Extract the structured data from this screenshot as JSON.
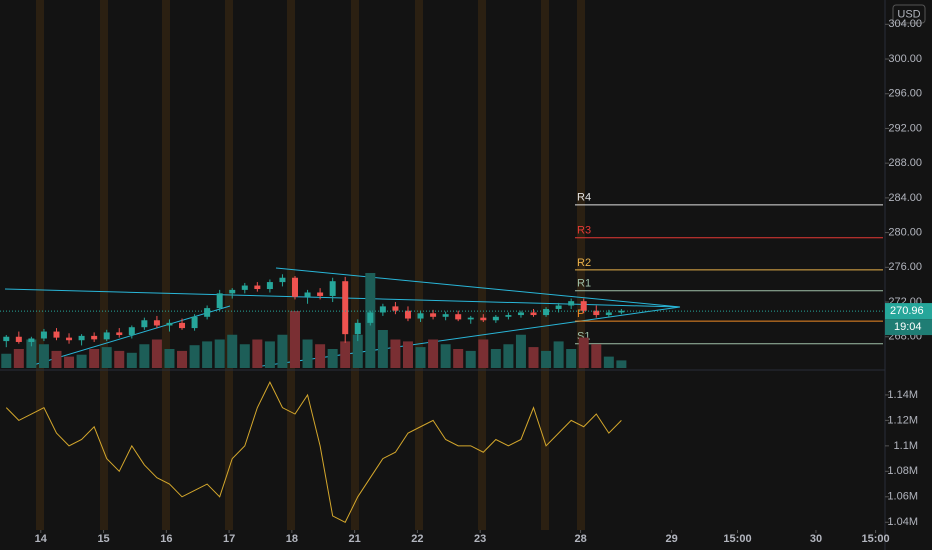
{
  "chart_data": {
    "type": "candlestick",
    "currency": "USD",
    "x": [
      0,
      2,
      4,
      6,
      8,
      10,
      12,
      14,
      16,
      18,
      20,
      22,
      24,
      26,
      28,
      30,
      32,
      34,
      36,
      38,
      40,
      42,
      44,
      46,
      48,
      50,
      52,
      54,
      56,
      58,
      60,
      62,
      64,
      66,
      68,
      70,
      72,
      74,
      76,
      78,
      80,
      82,
      84,
      86,
      88,
      90,
      92,
      94,
      96,
      98
    ],
    "open": [
      267.5,
      268.0,
      267.4,
      267.8,
      268.6,
      267.9,
      267.6,
      268.1,
      267.7,
      268.5,
      268.2,
      269.1,
      269.9,
      269.3,
      269.6,
      269.0,
      270.3,
      271.3,
      273.0,
      273.4,
      273.9,
      273.5,
      274.3,
      274.8,
      272.6,
      273.1,
      272.7,
      274.4,
      268.3,
      269.6,
      270.8,
      271.5,
      271.0,
      270.1,
      270.7,
      270.3,
      270.6,
      270.0,
      270.2,
      269.9,
      270.3,
      270.5,
      270.8,
      270.5,
      271.2,
      271.6,
      272.1,
      271.0,
      270.5,
      270.8
    ],
    "high": [
      268.2,
      268.6,
      268.0,
      268.9,
      269.0,
      268.4,
      268.3,
      268.5,
      268.8,
      269.0,
      269.3,
      270.2,
      270.4,
      270.0,
      270.1,
      270.6,
      271.6,
      273.4,
      273.6,
      274.2,
      274.3,
      274.6,
      275.2,
      275.0,
      273.4,
      273.6,
      274.8,
      274.9,
      270.0,
      271.0,
      271.8,
      272.0,
      271.5,
      271.0,
      271.1,
      270.9,
      271.0,
      270.4,
      270.6,
      270.5,
      270.8,
      271.0,
      271.2,
      271.4,
      271.9,
      272.4,
      272.4,
      271.6,
      271.1,
      271.2
    ],
    "low": [
      266.8,
      267.2,
      266.9,
      267.5,
      267.6,
      267.2,
      267.0,
      267.4,
      267.5,
      267.9,
      267.8,
      268.8,
      269.0,
      268.6,
      268.8,
      268.7,
      270.0,
      271.0,
      272.4,
      273.0,
      273.2,
      273.1,
      273.8,
      272.3,
      271.8,
      272.3,
      272.0,
      267.3,
      267.5,
      269.3,
      270.4,
      270.6,
      269.8,
      269.7,
      270.0,
      269.9,
      269.8,
      269.5,
      269.7,
      269.6,
      270.0,
      270.2,
      270.3,
      270.3,
      270.8,
      271.2,
      270.7,
      270.2,
      270.2,
      270.6
    ],
    "close": [
      268.0,
      267.4,
      267.8,
      268.6,
      267.9,
      267.6,
      268.1,
      267.7,
      268.5,
      268.2,
      269.1,
      269.9,
      269.3,
      269.6,
      269.0,
      270.3,
      271.3,
      273.0,
      273.4,
      273.9,
      273.5,
      274.3,
      274.8,
      272.6,
      273.1,
      272.7,
      274.4,
      268.3,
      269.6,
      270.8,
      271.5,
      271.0,
      270.1,
      270.7,
      270.3,
      270.6,
      270.0,
      270.2,
      269.9,
      270.3,
      270.5,
      270.8,
      270.5,
      271.2,
      271.6,
      272.1,
      271.0,
      270.5,
      270.8,
      271.0
    ],
    "volume": [
      15,
      20,
      30,
      25,
      18,
      12,
      14,
      20,
      22,
      18,
      16,
      25,
      30,
      20,
      18,
      24,
      28,
      30,
      35,
      25,
      30,
      28,
      35,
      60,
      30,
      25,
      20,
      28,
      35,
      100,
      40,
      30,
      28,
      22,
      30,
      25,
      20,
      18,
      30,
      20,
      25,
      35,
      22,
      18,
      28,
      20,
      32,
      25,
      12,
      8
    ],
    "indicator": [
      1130000,
      1120000,
      1125000,
      1130000,
      1110000,
      1100000,
      1105000,
      1115000,
      1090000,
      1080000,
      1100000,
      1085000,
      1075000,
      1070000,
      1060000,
      1065000,
      1070000,
      1060000,
      1090000,
      1100000,
      1130000,
      1150000,
      1130000,
      1125000,
      1140000,
      1100000,
      1045000,
      1040000,
      1060000,
      1075000,
      1090000,
      1095000,
      1110000,
      1115000,
      1120000,
      1105000,
      1100000,
      1100000,
      1095000,
      1105000,
      1100000,
      1105000,
      1130000,
      1100000,
      1110000,
      1120000,
      1115000,
      1125000,
      1110000,
      1120000
    ],
    "xlim": [
      -1,
      140
    ],
    "xticks": [
      {
        "value": 5.5,
        "label": "14"
      },
      {
        "value": 15.5,
        "label": "15"
      },
      {
        "value": 25.5,
        "label": "16"
      },
      {
        "value": 35.5,
        "label": "17"
      },
      {
        "value": 45.5,
        "label": "18"
      },
      {
        "value": 55.5,
        "label": "21"
      },
      {
        "value": 65.5,
        "label": "22"
      },
      {
        "value": 75.5,
        "label": "23"
      },
      {
        "value": 91.5,
        "label": "28"
      },
      {
        "value": 106,
        "label": "29"
      },
      {
        "value": 116.5,
        "label": "15:00"
      },
      {
        "value": 129,
        "label": "30"
      },
      {
        "value": 138.5,
        "label": "15:00"
      }
    ],
    "ylim": [
      264.4,
      306.8
    ],
    "yticks": [
      {
        "value": 304,
        "label": "304.00"
      },
      {
        "value": 300,
        "label": "300.00"
      },
      {
        "value": 296,
        "label": "296.00"
      },
      {
        "value": 292,
        "label": "292.00"
      },
      {
        "value": 288,
        "label": "288.00"
      },
      {
        "value": 284,
        "label": "284.00"
      },
      {
        "value": 280,
        "label": "280.00"
      },
      {
        "value": 276,
        "label": "276.00"
      },
      {
        "value": 272,
        "label": "272.00"
      },
      {
        "value": 268,
        "label": "268.00"
      }
    ],
    "y2lim": [
      1030000,
      1158000
    ],
    "y2ticks": [
      {
        "value": 1140000,
        "label": "1.14M"
      },
      {
        "value": 1120000,
        "label": "1.12M"
      },
      {
        "value": 1100000,
        "label": "1.1M"
      },
      {
        "value": 1080000,
        "label": "1.08M"
      },
      {
        "value": 1060000,
        "label": "1.06M"
      },
      {
        "value": 1040000,
        "label": "1.04M"
      }
    ],
    "pivots": [
      {
        "label": "R4",
        "value": 283.2,
        "color": "#e0e0e0"
      },
      {
        "label": "R3",
        "value": 279.4,
        "color": "#e53935"
      },
      {
        "label": "R2",
        "value": 275.7,
        "color": "#e8b04a"
      },
      {
        "label": "R1",
        "value": 273.3,
        "color": "#9fbfa8"
      },
      {
        "label": "P",
        "value": 269.8,
        "color": "#f08a24"
      },
      {
        "label": "S1",
        "value": 267.2,
        "color": "#9fbfa8"
      }
    ],
    "last_price": 270.96,
    "countdown": "19:04",
    "up_color": "#26a69a",
    "down_color": "#ef5350",
    "indicator_color": "#d4a72c"
  }
}
